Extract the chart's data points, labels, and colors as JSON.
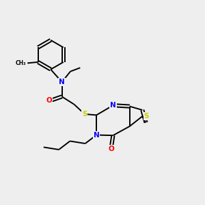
{
  "background_color": "#eeeeee",
  "bond_color": "#000000",
  "atom_colors": {
    "N": "#0000ff",
    "O": "#ff0000",
    "S": "#cccc00",
    "C": "#000000"
  },
  "figsize": [
    3.0,
    3.0
  ],
  "dpi": 100
}
